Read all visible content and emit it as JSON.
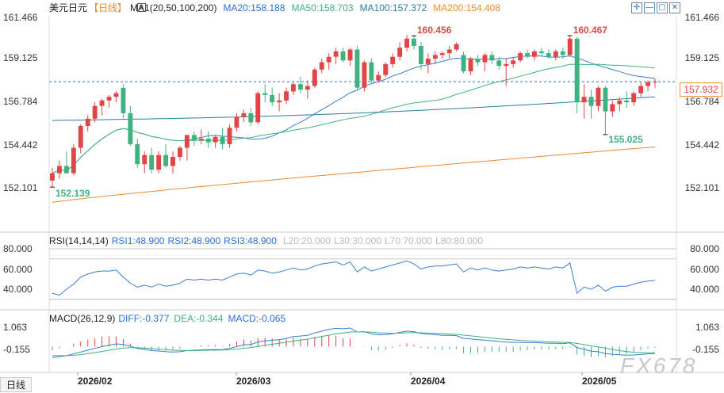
{
  "header": {
    "symbol": "美元日元",
    "period": "【日线】",
    "ma_label": "MA1(20,50,100,200)",
    "ma20": "MA20:158.188",
    "ma50": "MA50:158.703",
    "ma100": "MA100:157.372",
    "ma200": "MA200:154.408"
  },
  "rsi_header": {
    "label": "RSI(14,14,14)",
    "rsi1": "RSI1:48.900",
    "rsi2": "RSI2:48.900",
    "rsi3": "RSI3:48.900",
    "l20": "L20:20.000",
    "l30": "L30:30.000",
    "l70": "L70:70.000",
    "l80": "L80:80.000"
  },
  "macd_header": {
    "label": "MACD(26,12,9)",
    "diff": "DIFF:-0.377",
    "dea": "DEA:-0.344",
    "macd": "MACD:-0.065"
  },
  "bottom_tab": "日线",
  "watermark": "FX678",
  "colors": {
    "up": "#e04646",
    "down": "#3fb37f",
    "ma20": "#3a7fd0",
    "ma50": "#3fb37f",
    "ma100": "#2a7ea0",
    "ma200": "#f08a2c",
    "label_blue": "#2a6fd6",
    "label_green": "#3fb37f",
    "label_orange": "#f08a2c"
  },
  "chart_data": [
    {
      "type": "candlestick",
      "yticks": [
        "161.466",
        "159.125",
        "156.784",
        "154.442",
        "152.101"
      ],
      "ylim": [
        150.9,
        162.0
      ],
      "x_labels": [
        "2026/02",
        "2026/03",
        "2026/04",
        "2026/05"
      ],
      "annotations": {
        "high1": "160.456",
        "high2": "160.467",
        "low1": "152.139",
        "low2": "155.025"
      },
      "last_price": "157.932",
      "candles": [
        [
          152.5,
          153.2,
          152.1,
          152.9
        ],
        [
          152.9,
          153.6,
          152.6,
          153.3
        ],
        [
          153.3,
          154.1,
          152.9,
          152.9
        ],
        [
          152.9,
          154.5,
          152.8,
          154.3
        ],
        [
          154.3,
          155.6,
          154.0,
          155.5
        ],
        [
          155.5,
          156.1,
          155.2,
          155.9
        ],
        [
          155.9,
          156.8,
          155.7,
          156.6
        ],
        [
          156.6,
          157.0,
          156.1,
          156.9
        ],
        [
          156.9,
          157.2,
          156.5,
          157.1
        ],
        [
          157.1,
          157.4,
          156.8,
          157.3
        ],
        [
          157.6,
          157.8,
          155.9,
          156.2
        ],
        [
          156.2,
          156.6,
          154.4,
          154.5
        ],
        [
          154.5,
          154.8,
          153.2,
          153.4
        ],
        [
          153.4,
          154.1,
          152.9,
          153.9
        ],
        [
          153.9,
          154.3,
          152.9,
          153.1
        ],
        [
          153.1,
          154.1,
          152.9,
          153.9
        ],
        [
          153.9,
          154.5,
          153.2,
          153.3
        ],
        [
          153.3,
          154.1,
          152.9,
          153.8
        ],
        [
          153.8,
          154.4,
          153.6,
          154.3
        ],
        [
          154.3,
          155.0,
          153.6,
          155.0
        ],
        [
          155.0,
          155.2,
          154.4,
          154.7
        ],
        [
          154.7,
          155.3,
          154.5,
          154.8
        ],
        [
          154.8,
          155.2,
          154.3,
          154.6
        ],
        [
          154.6,
          155.0,
          154.3,
          154.9
        ],
        [
          154.9,
          155.4,
          154.2,
          154.5
        ],
        [
          154.5,
          155.6,
          154.3,
          155.4
        ],
        [
          155.4,
          156.2,
          155.2,
          156.0
        ],
        [
          156.0,
          156.4,
          155.7,
          156.2
        ],
        [
          156.2,
          156.5,
          155.5,
          155.7
        ],
        [
          155.7,
          157.4,
          155.6,
          157.3
        ],
        [
          157.3,
          157.8,
          156.8,
          157.2
        ],
        [
          157.2,
          157.6,
          156.6,
          156.8
        ],
        [
          156.8,
          157.3,
          156.3,
          156.9
        ],
        [
          156.9,
          157.6,
          156.7,
          157.4
        ],
        [
          157.4,
          157.9,
          157.2,
          157.8
        ],
        [
          157.8,
          158.2,
          157.3,
          157.5
        ],
        [
          157.5,
          158.0,
          157.0,
          157.7
        ],
        [
          157.7,
          158.7,
          157.6,
          158.6
        ],
        [
          158.6,
          159.2,
          158.4,
          159.0
        ],
        [
          159.0,
          159.5,
          158.6,
          159.3
        ],
        [
          159.3,
          159.8,
          158.9,
          159.6
        ],
        [
          159.6,
          159.8,
          159.0,
          159.1
        ],
        [
          159.1,
          159.8,
          158.8,
          159.7
        ],
        [
          159.7,
          159.9,
          157.5,
          157.6
        ],
        [
          157.6,
          159.1,
          157.4,
          159.0
        ],
        [
          159.0,
          159.2,
          157.8,
          158.0
        ],
        [
          158.0,
          158.5,
          157.9,
          158.3
        ],
        [
          158.3,
          159.0,
          158.2,
          158.9
        ],
        [
          158.9,
          159.5,
          158.7,
          159.3
        ],
        [
          159.3,
          160.1,
          159.1,
          159.8
        ],
        [
          159.8,
          160.5,
          159.6,
          160.3
        ],
        [
          160.3,
          160.5,
          159.7,
          159.9
        ],
        [
          159.9,
          160.1,
          158.6,
          158.9
        ],
        [
          158.9,
          159.5,
          158.4,
          159.2
        ],
        [
          159.2,
          159.6,
          158.9,
          159.4
        ],
        [
          159.4,
          159.6,
          159.2,
          159.5
        ],
        [
          159.5,
          159.9,
          159.2,
          159.7
        ],
        [
          159.7,
          160.1,
          159.6,
          160.0
        ],
        [
          159.4,
          159.6,
          158.4,
          158.5
        ],
        [
          158.5,
          159.3,
          158.3,
          159.2
        ],
        [
          159.2,
          159.4,
          158.8,
          159.0
        ],
        [
          159.0,
          159.5,
          158.5,
          159.4
        ],
        [
          159.4,
          159.6,
          158.9,
          159.1
        ],
        [
          159.1,
          159.3,
          158.6,
          158.8
        ],
        [
          158.8,
          159.2,
          157.7,
          158.9
        ],
        [
          158.9,
          159.3,
          158.7,
          159.1
        ],
        [
          159.1,
          159.6,
          159.0,
          159.5
        ],
        [
          159.5,
          159.7,
          159.2,
          159.3
        ],
        [
          159.3,
          159.7,
          159.1,
          159.6
        ],
        [
          159.6,
          159.8,
          159.3,
          159.5
        ],
        [
          159.5,
          159.7,
          159.2,
          159.3
        ],
        [
          159.3,
          159.7,
          159.1,
          159.6
        ],
        [
          159.6,
          159.8,
          159.2,
          159.4
        ],
        [
          159.4,
          160.467,
          159.3,
          160.3
        ],
        [
          160.3,
          160.4,
          156.2,
          156.8
        ],
        [
          156.8,
          157.8,
          155.9,
          157.1
        ],
        [
          157.1,
          157.5,
          155.9,
          156.6
        ],
        [
          156.6,
          157.7,
          156.3,
          157.6
        ],
        [
          157.6,
          157.7,
          155.025,
          156.3
        ],
        [
          156.3,
          156.9,
          156.0,
          156.7
        ],
        [
          156.7,
          157.1,
          156.3,
          156.9
        ],
        [
          156.9,
          157.4,
          156.5,
          156.8
        ],
        [
          156.8,
          157.4,
          156.6,
          157.3
        ],
        [
          157.3,
          157.9,
          157.1,
          157.7
        ],
        [
          157.7,
          158.0,
          157.4,
          157.9
        ],
        [
          157.9,
          158.1,
          157.6,
          157.932
        ]
      ]
    },
    {
      "type": "line",
      "name": "RSI",
      "yticks": [
        "80.000",
        "60.000",
        "40.000"
      ],
      "ylim": [
        25,
        85
      ],
      "ref_lines": [
        80,
        70,
        30,
        20
      ],
      "values": [
        36,
        34,
        40,
        45,
        52,
        55,
        57,
        58,
        58,
        59,
        52,
        46,
        42,
        44,
        42,
        45,
        43,
        44,
        46,
        50,
        49,
        50,
        49,
        50,
        49,
        52,
        55,
        56,
        54,
        59,
        58,
        56,
        57,
        59,
        61,
        59,
        60,
        63,
        65,
        66,
        67,
        64,
        67,
        57,
        62,
        58,
        60,
        62,
        64,
        66,
        68,
        65,
        60,
        62,
        63,
        63,
        64,
        65,
        57,
        61,
        59,
        61,
        59,
        58,
        59,
        60,
        62,
        61,
        62,
        61,
        60,
        62,
        61,
        66,
        36,
        42,
        40,
        44,
        38,
        42,
        43,
        43,
        45,
        47,
        48,
        48.9
      ]
    },
    {
      "type": "macd",
      "name": "MACD",
      "yticks": [
        "1.063",
        "-0.155"
      ],
      "ylim": [
        -0.9,
        1.6
      ],
      "diff": [
        -0.6,
        -0.55,
        -0.5,
        -0.4,
        -0.3,
        -0.2,
        -0.1,
        0.0,
        0.08,
        0.15,
        0.12,
        0.02,
        -0.1,
        -0.15,
        -0.22,
        -0.24,
        -0.28,
        -0.3,
        -0.28,
        -0.22,
        -0.2,
        -0.18,
        -0.17,
        -0.16,
        -0.17,
        -0.1,
        0.0,
        0.1,
        0.12,
        0.25,
        0.32,
        0.35,
        0.38,
        0.45,
        0.55,
        0.58,
        0.62,
        0.75,
        0.85,
        0.95,
        1.0,
        0.98,
        1.02,
        0.8,
        0.82,
        0.7,
        0.65,
        0.66,
        0.7,
        0.78,
        0.85,
        0.82,
        0.72,
        0.68,
        0.66,
        0.62,
        0.62,
        0.6,
        0.45,
        0.42,
        0.38,
        0.36,
        0.32,
        0.28,
        0.25,
        0.23,
        0.23,
        0.22,
        0.22,
        0.2,
        0.18,
        0.18,
        0.16,
        0.2,
        -0.05,
        -0.15,
        -0.25,
        -0.28,
        -0.38,
        -0.42,
        -0.45,
        -0.47,
        -0.46,
        -0.43,
        -0.4,
        -0.377
      ],
      "dea": [
        -0.5,
        -0.5,
        -0.5,
        -0.48,
        -0.44,
        -0.39,
        -0.33,
        -0.27,
        -0.2,
        -0.13,
        -0.08,
        -0.06,
        -0.07,
        -0.08,
        -0.11,
        -0.14,
        -0.17,
        -0.2,
        -0.21,
        -0.22,
        -0.22,
        -0.21,
        -0.2,
        -0.2,
        -0.19,
        -0.17,
        -0.14,
        -0.09,
        -0.05,
        0.01,
        0.08,
        0.13,
        0.18,
        0.24,
        0.3,
        0.36,
        0.41,
        0.48,
        0.55,
        0.63,
        0.7,
        0.75,
        0.8,
        0.8,
        0.81,
        0.79,
        0.76,
        0.74,
        0.73,
        0.74,
        0.76,
        0.77,
        0.76,
        0.74,
        0.73,
        0.71,
        0.69,
        0.67,
        0.63,
        0.59,
        0.55,
        0.51,
        0.47,
        0.43,
        0.4,
        0.37,
        0.34,
        0.32,
        0.3,
        0.28,
        0.26,
        0.25,
        0.23,
        0.23,
        0.17,
        0.11,
        0.04,
        -0.02,
        -0.09,
        -0.16,
        -0.22,
        -0.27,
        -0.31,
        -0.33,
        -0.34,
        -0.344
      ]
    }
  ]
}
